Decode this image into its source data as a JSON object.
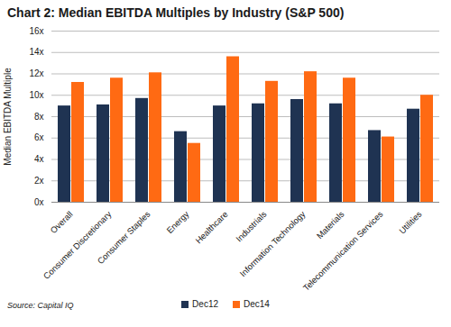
{
  "chart_data": {
    "type": "bar",
    "title": "Chart 2: Median EBITDA Multiples by Industry (S&P 500)",
    "y_label": "Median EBITDA Multiple",
    "source": "Source: Capital IQ",
    "categories": [
      "Overall",
      "Consumer Discretionary",
      "Consumer Staples",
      "Energy",
      "Healthcare",
      "Industrials",
      "Information Technology",
      "Materials",
      "Telecommunication Services",
      "Utilities"
    ],
    "series": [
      {
        "name": "Dec12",
        "color": "#1f3352",
        "values": [
          9.0,
          9.1,
          9.7,
          6.6,
          9.0,
          9.2,
          9.6,
          9.2,
          6.7,
          8.7
        ]
      },
      {
        "name": "Dec14",
        "color": "#ff6a13",
        "values": [
          11.2,
          11.6,
          12.1,
          5.5,
          13.6,
          11.3,
          12.2,
          11.6,
          6.1,
          10.0
        ]
      }
    ],
    "ylim": [
      0,
      16
    ],
    "yticks": [
      {
        "value": 0,
        "label": "0x"
      },
      {
        "value": 2,
        "label": "2x"
      },
      {
        "value": 4,
        "label": "4x"
      },
      {
        "value": 6,
        "label": "6x"
      },
      {
        "value": 8,
        "label": "8x"
      },
      {
        "value": 10,
        "label": "10x"
      },
      {
        "value": 12,
        "label": "12x"
      },
      {
        "value": 14,
        "label": "14x"
      },
      {
        "value": 16,
        "label": "16x"
      }
    ],
    "grid": true,
    "legend": "bottom"
  }
}
